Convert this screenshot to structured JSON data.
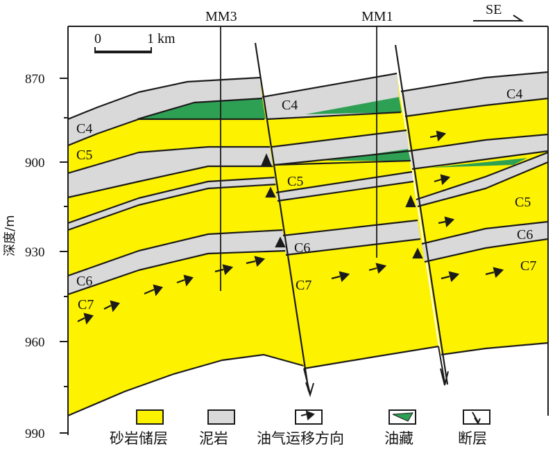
{
  "header": {
    "direction": "SE"
  },
  "wells": [
    {
      "name": "MM3"
    },
    {
      "name": "MM1"
    }
  ],
  "scale_bar": {
    "zero": "0",
    "end": "1 km"
  },
  "axis": {
    "label": "深度/m",
    "ticks": [
      "870",
      "900",
      "930",
      "960",
      "990"
    ]
  },
  "layers": {
    "left": [
      {
        "name": "C4"
      },
      {
        "name": "C5"
      },
      {
        "name": "C6"
      },
      {
        "name": "C7"
      }
    ],
    "middle": [
      {
        "name": "C4"
      },
      {
        "name": "C5"
      },
      {
        "name": "C6"
      },
      {
        "name": "C7"
      }
    ],
    "right": [
      {
        "name": "C4"
      },
      {
        "name": "C5"
      },
      {
        "name": "C6"
      },
      {
        "name": "C7"
      }
    ]
  },
  "legend": [
    {
      "name": "砂岩储层"
    },
    {
      "name": "泥岩"
    },
    {
      "name": "油气运移方向"
    },
    {
      "name": "油藏"
    },
    {
      "name": "断层"
    }
  ],
  "colors": {
    "sandstone": "#fdf200",
    "mudstone": "#d9d9d9",
    "oil": "#2ea053",
    "line": "#1a1a1a"
  }
}
